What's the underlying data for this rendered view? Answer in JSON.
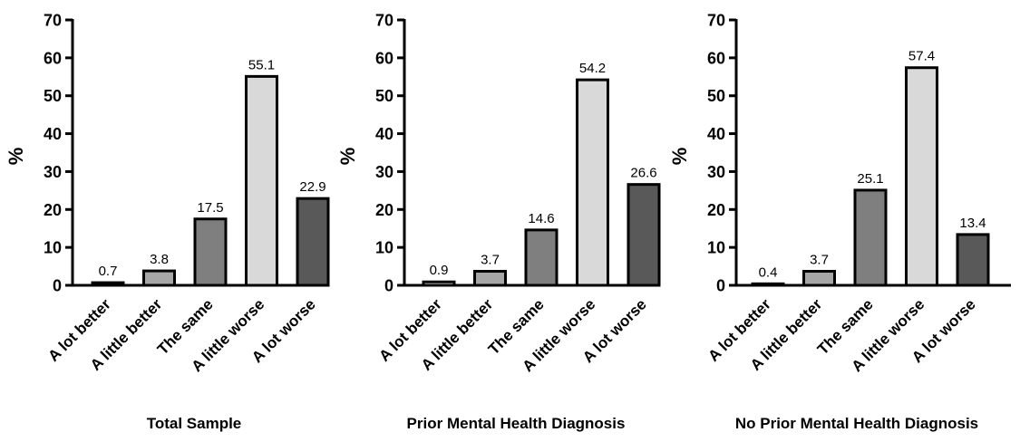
{
  "chart_data": [
    {
      "type": "bar",
      "title": "Total Sample",
      "ylabel": "%",
      "xlabel": "",
      "ylim": [
        0,
        70
      ],
      "yticks": [
        "0",
        "10",
        "20",
        "30",
        "40",
        "50",
        "60",
        "70"
      ],
      "categories": [
        "A lot better",
        "A little better",
        "The same",
        "A little worse",
        "A lot worse"
      ],
      "values": [
        0.7,
        3.8,
        17.5,
        55.1,
        22.9
      ],
      "data_labels": [
        "0.7",
        "3.8",
        "17.5",
        "55.1",
        "22.9"
      ],
      "bar_colors": [
        "#e6e6e6",
        "#a6a6a6",
        "#7f7f7f",
        "#d9d9d9",
        "#595959"
      ],
      "grid": false,
      "legend": "none"
    },
    {
      "type": "bar",
      "title": "Prior Mental Health Diagnosis",
      "ylabel": "%",
      "xlabel": "",
      "ylim": [
        0,
        70
      ],
      "yticks": [
        "0",
        "10",
        "20",
        "30",
        "40",
        "50",
        "60",
        "70"
      ],
      "categories": [
        "A lot better",
        "A little better",
        "The same",
        "A little worse",
        "A lot worse"
      ],
      "values": [
        0.9,
        3.7,
        14.6,
        54.2,
        26.6
      ],
      "data_labels": [
        "0.9",
        "3.7",
        "14.6",
        "54.2",
        "26.6"
      ],
      "bar_colors": [
        "#e6e6e6",
        "#a6a6a6",
        "#7f7f7f",
        "#d9d9d9",
        "#595959"
      ],
      "grid": false,
      "legend": "none"
    },
    {
      "type": "bar",
      "title": "No Prior Mental Health Diagnosis",
      "ylabel": "%",
      "xlabel": "",
      "ylim": [
        0,
        70
      ],
      "yticks": [
        "0",
        "10",
        "20",
        "30",
        "40",
        "50",
        "60",
        "70"
      ],
      "categories": [
        "A lot better",
        "A little better",
        "The same",
        "A little worse",
        "A lot worse"
      ],
      "values": [
        0.4,
        3.7,
        25.1,
        57.4,
        13.4
      ],
      "data_labels": [
        "0.4",
        "3.7",
        "25.1",
        "57.4",
        "13.4"
      ],
      "bar_colors": [
        "#e6e6e6",
        "#a6a6a6",
        "#7f7f7f",
        "#d9d9d9",
        "#595959"
      ],
      "grid": false,
      "legend": "none"
    }
  ]
}
